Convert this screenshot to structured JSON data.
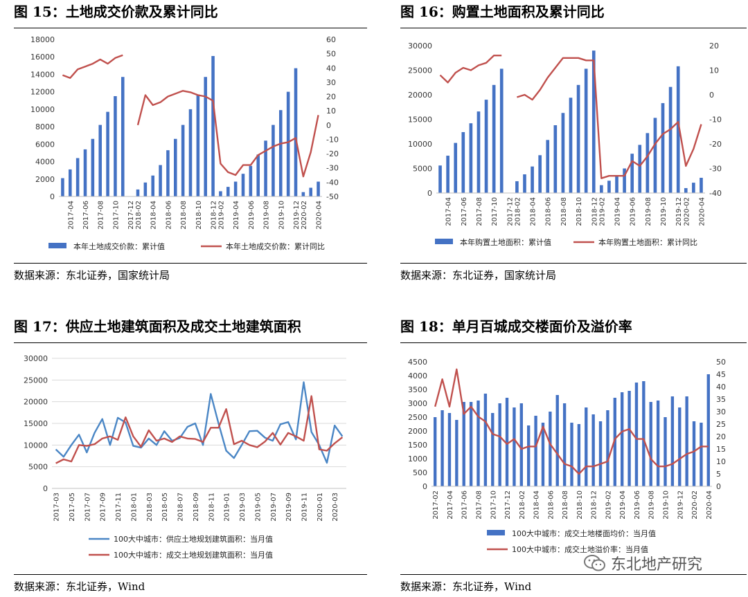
{
  "panels": [
    {
      "title": "图 15：土地成交价款及累计同比",
      "source": "数据来源：东北证券，国家统计局"
    },
    {
      "title": "图 16：购置土地面积及累计同比",
      "source": "数据来源：东北证券，国家统计局"
    },
    {
      "title": "图 17：供应土地建筑面积及成交土地建筑面积",
      "source": "数据来源：东北证券，Wind"
    },
    {
      "title": "图 18：单月百城成交楼面价及溢价率",
      "source": "数据来源：东北证券，Wind"
    }
  ],
  "watermark": {
    "text": "东北地产研究",
    "icon": "wechat-icon"
  },
  "chart_data": [
    {
      "type": "bar+line",
      "title": "",
      "x": [
        "2017-03",
        "2017-04",
        "2017-05",
        "2017-06",
        "2017-07",
        "2017-08",
        "2017-09",
        "2017-10",
        "2017-11",
        "2017-12",
        "2018-02",
        "2018-03",
        "2018-04",
        "2018-05",
        "2018-06",
        "2018-07",
        "2018-08",
        "2018-09",
        "2018-10",
        "2018-11",
        "2018-12",
        "2019-02",
        "2019-03",
        "2019-04",
        "2019-05",
        "2019-06",
        "2019-07",
        "2019-08",
        "2019-09",
        "2019-10",
        "2019-11",
        "2019-12",
        "2020-02",
        "2020-03",
        "2020-04"
      ],
      "tick_labels": [
        "2017-04",
        "2017-06",
        "2017-08",
        "2017-10",
        "2017-12",
        "2018-02",
        "2018-04",
        "2018-06",
        "2018-08",
        "2018-10",
        "2018-12",
        "2019-02",
        "2019-04",
        "2019-06",
        "2019-08",
        "2019-10",
        "2019-12",
        "2020-02",
        "2020-04"
      ],
      "tick_index": [
        1,
        3,
        5,
        7,
        9,
        10,
        12,
        14,
        16,
        18,
        20,
        21,
        23,
        25,
        27,
        29,
        31,
        32,
        34
      ],
      "ylim_left": [
        0,
        18000
      ],
      "yticks_left": [
        0,
        2000,
        4000,
        6000,
        8000,
        10000,
        12000,
        14000,
        16000,
        18000
      ],
      "ylim_right": [
        -50,
        60
      ],
      "yticks_right": [
        -50,
        -40,
        -30,
        -20,
        -10,
        0,
        10,
        20,
        30,
        40,
        50,
        60
      ],
      "bar_color": "#4472C4",
      "line_color": "#C0504D",
      "series": [
        {
          "name": "本年土地成交价款：累计值",
          "kind": "bar",
          "axis": "left",
          "values": [
            2100,
            3100,
            4400,
            5400,
            6600,
            8200,
            9700,
            11500,
            13700,
            null,
            800,
            1600,
            2400,
            3600,
            5300,
            6600,
            8200,
            10000,
            11700,
            13700,
            16100,
            600,
            1100,
            1700,
            2600,
            3500,
            4800,
            6400,
            8200,
            9900,
            12000,
            14700,
            500,
            1000,
            1700
          ]
        },
        {
          "name": "本年土地成交价款：累计同比",
          "kind": "line",
          "axis": "right",
          "values": [
            35,
            33,
            39,
            41,
            43,
            46,
            43,
            47,
            49,
            null,
            0,
            21,
            14,
            16,
            20,
            22,
            24,
            23,
            21,
            20,
            17,
            -27,
            -33,
            -35,
            -28,
            -28,
            -21,
            -18,
            -15,
            -13,
            -12,
            -9,
            -36,
            -19,
            7
          ]
        }
      ]
    },
    {
      "type": "bar+line",
      "title": "",
      "x": [
        "2017-03",
        "2017-04",
        "2017-05",
        "2017-06",
        "2017-07",
        "2017-08",
        "2017-09",
        "2017-10",
        "2017-11",
        "2017-12",
        "2018-02",
        "2018-03",
        "2018-04",
        "2018-05",
        "2018-06",
        "2018-07",
        "2018-08",
        "2018-09",
        "2018-10",
        "2018-11",
        "2018-12",
        "2019-02",
        "2019-03",
        "2019-04",
        "2019-05",
        "2019-06",
        "2019-07",
        "2019-08",
        "2019-09",
        "2019-10",
        "2019-11",
        "2019-12",
        "2020-02",
        "2020-03",
        "2020-04"
      ],
      "tick_labels": [
        "2017-04",
        "2017-06",
        "2017-08",
        "2017-10",
        "2017-12",
        "2018-02",
        "2018-04",
        "2018-06",
        "2018-08",
        "2018-10",
        "2018-12",
        "2019-02",
        "2019-04",
        "2019-06",
        "2019-08",
        "2019-10",
        "2019-12",
        "2020-02",
        "2020-04"
      ],
      "tick_index": [
        1,
        3,
        5,
        7,
        9,
        10,
        12,
        14,
        16,
        18,
        20,
        21,
        23,
        25,
        27,
        29,
        31,
        32,
        34
      ],
      "ylim_left": [
        0,
        30000
      ],
      "yticks_left": [
        0,
        5000,
        10000,
        15000,
        20000,
        25000,
        30000
      ],
      "ylim_right": [
        -40,
        20
      ],
      "yticks_right": [
        -40,
        -30,
        -20,
        -10,
        0,
        10,
        20
      ],
      "bar_color": "#4472C4",
      "line_color": "#C0504D",
      "series": [
        {
          "name": "本年购置土地面积：累计值",
          "kind": "bar",
          "axis": "left",
          "values": [
            5600,
            7600,
            10200,
            12400,
            14200,
            16600,
            19000,
            22000,
            25300,
            null,
            2400,
            3800,
            5400,
            7700,
            10800,
            13800,
            16300,
            19400,
            22000,
            25300,
            29000,
            1600,
            2500,
            3500,
            5000,
            8000,
            9800,
            12200,
            15300,
            18300,
            21600,
            25800,
            1000,
            2100,
            3100
          ]
        },
        {
          "name": "本年购置土地面积：累计同比",
          "kind": "line",
          "axis": "right",
          "values": [
            8,
            5,
            9,
            11,
            10,
            12,
            13,
            16,
            16,
            null,
            -1,
            0,
            -2,
            2,
            7,
            11,
            15,
            15,
            15,
            14,
            14,
            -34,
            -33,
            -33,
            -33,
            -27,
            -29,
            -25,
            -20,
            -16,
            -14,
            -11,
            -29,
            -22,
            -12
          ]
        }
      ]
    },
    {
      "type": "line",
      "title": "",
      "x": [
        "2017-03",
        "2017-04",
        "2017-05",
        "2017-06",
        "2017-07",
        "2017-08",
        "2017-09",
        "2017-10",
        "2017-11",
        "2017-12",
        "2018-01",
        "2018-02",
        "2018-03",
        "2018-04",
        "2018-05",
        "2018-06",
        "2018-07",
        "2018-08",
        "2018-09",
        "2018-10",
        "2018-11",
        "2018-12",
        "2019-01",
        "2019-02",
        "2019-03",
        "2019-04",
        "2019-05",
        "2019-06",
        "2019-07",
        "2019-08",
        "2019-09",
        "2019-10",
        "2019-11",
        "2019-12",
        "2020-01",
        "2020-02",
        "2020-03",
        "2020-04"
      ],
      "tick_labels": [
        "2017-03",
        "2017-05",
        "2017-07",
        "2017-09",
        "2017-11",
        "2018-01",
        "2018-03",
        "2018-05",
        "2018-07",
        "2018-09",
        "2018-11",
        "2019-01",
        "2019-03",
        "2019-05",
        "2019-07",
        "2019-09",
        "2019-11",
        "2020-01",
        "2020-03"
      ],
      "ylim": [
        0,
        30000
      ],
      "yticks": [
        0,
        5000,
        10000,
        15000,
        20000,
        25000,
        30000
      ],
      "series": [
        {
          "name": "100大中城市：供应土地规划建筑面积：当月值",
          "color": "#4A86C5",
          "values": [
            9000,
            7300,
            10000,
            12400,
            8300,
            12800,
            16000,
            10000,
            16300,
            15200,
            9800,
            9400,
            11500,
            10000,
            13200,
            11000,
            11600,
            14200,
            15000,
            10000,
            21800,
            15000,
            8700,
            7000,
            10000,
            13200,
            13300,
            11700,
            11000,
            14800,
            15300,
            11300,
            24500,
            13000,
            10000,
            5900,
            14500,
            12000
          ]
        },
        {
          "name": "100大中城市：成交土地规划建筑面积：当月值",
          "color": "#C0504D",
          "values": [
            5800,
            6700,
            6200,
            10000,
            9800,
            10200,
            11500,
            12000,
            11200,
            16400,
            12000,
            9600,
            13400,
            11000,
            11500,
            10700,
            12000,
            11500,
            11400,
            10700,
            14000,
            14000,
            18300,
            10200,
            11000,
            10000,
            9500,
            10800,
            12800,
            10100,
            12800,
            12000,
            11000,
            21300,
            9000,
            8700,
            10400,
            11800
          ]
        }
      ]
    },
    {
      "type": "bar+line",
      "title": "",
      "x": [
        "2017-02",
        "2017-03",
        "2017-04",
        "2017-05",
        "2017-06",
        "2017-07",
        "2017-08",
        "2017-09",
        "2017-10",
        "2017-11",
        "2017-12",
        "2018-01",
        "2018-02",
        "2018-03",
        "2018-04",
        "2018-05",
        "2018-06",
        "2018-07",
        "2018-08",
        "2018-09",
        "2018-10",
        "2018-11",
        "2018-12",
        "2019-01",
        "2019-02",
        "2019-03",
        "2019-04",
        "2019-05",
        "2019-06",
        "2019-07",
        "2019-08",
        "2019-09",
        "2019-10",
        "2019-11",
        "2019-12",
        "2020-01",
        "2020-02",
        "2020-03",
        "2020-04"
      ],
      "tick_labels": [
        "2017-02",
        "2017-04",
        "2017-06",
        "2017-08",
        "2017-10",
        "2017-12",
        "2018-02",
        "2018-04",
        "2018-06",
        "2018-08",
        "2018-10",
        "2018-12",
        "2019-02",
        "2019-04",
        "2019-06",
        "2019-08",
        "2019-10",
        "2019-12",
        "2020-02",
        "2020-04"
      ],
      "ylim_left": [
        0,
        4500
      ],
      "yticks_left": [
        0,
        500,
        1000,
        1500,
        2000,
        2500,
        3000,
        3500,
        4000,
        4500
      ],
      "ylim_right": [
        0,
        50
      ],
      "yticks_right": [
        0,
        5,
        10,
        15,
        20,
        25,
        30,
        35,
        40,
        45,
        50
      ],
      "bar_color": "#4472C4",
      "line_color": "#C0504D",
      "series": [
        {
          "name": "100大中城市：成交土地楼面均价：当月值",
          "kind": "bar",
          "axis": "left",
          "values": [
            2500,
            2750,
            2650,
            2400,
            3050,
            3050,
            3100,
            3350,
            2650,
            3000,
            3200,
            2850,
            3000,
            2200,
            2550,
            2300,
            2700,
            3300,
            3000,
            2300,
            2250,
            2850,
            2600,
            2350,
            2750,
            3200,
            3400,
            3450,
            3750,
            3800,
            3050,
            3100,
            2500,
            3250,
            2850,
            3250,
            2350,
            2300,
            4050
          ]
        },
        {
          "name": "100大中城市：成交土地溢价率：当月值",
          "kind": "line",
          "axis": "right",
          "values": [
            32,
            43,
            32,
            47,
            29,
            32,
            28,
            26,
            21,
            20,
            17,
            19,
            15,
            16,
            16,
            24,
            17,
            13,
            9,
            8,
            5,
            8,
            8,
            9,
            10,
            19,
            22,
            23,
            19,
            19,
            11,
            8,
            8,
            9,
            11,
            13,
            14,
            16,
            16
          ]
        }
      ]
    }
  ]
}
